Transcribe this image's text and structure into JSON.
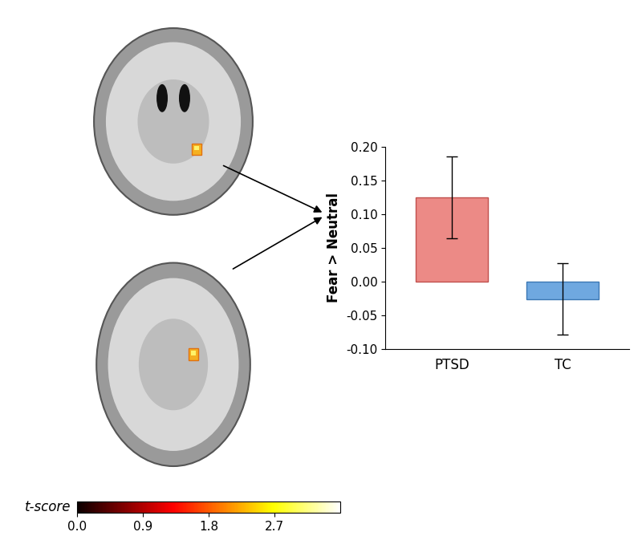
{
  "chart_data": {
    "type": "bar",
    "categories": [
      "PTSD",
      "TC"
    ],
    "values": [
      0.125,
      -0.026
    ],
    "errors": [
      0.061,
      0.053
    ],
    "colors": [
      "#ec8a86",
      "#6fa8e0"
    ],
    "ylabel": "Fear > Neutral",
    "ylim": [
      -0.1,
      0.2
    ],
    "yticks": [
      {
        "value": -0.1,
        "label": "-0.10"
      },
      {
        "value": -0.05,
        "label": "-0.05"
      },
      {
        "value": 0.0,
        "label": "0.00"
      },
      {
        "value": 0.05,
        "label": "0.05"
      },
      {
        "value": 0.1,
        "label": "0.10"
      },
      {
        "value": 0.15,
        "label": "0.15"
      },
      {
        "value": 0.2,
        "label": "0.20"
      }
    ],
    "colorbar": {
      "label": "t-score",
      "lim": [
        0.0,
        3.6
      ],
      "ticks": [
        0.0,
        0.9,
        1.8,
        2.7
      ]
    }
  }
}
